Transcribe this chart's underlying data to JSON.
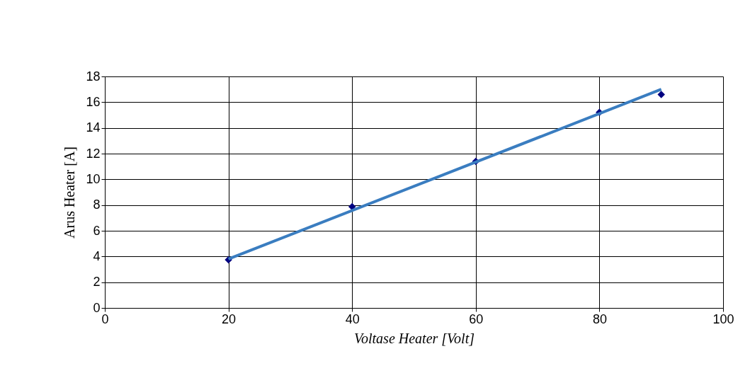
{
  "chart_data": {
    "type": "scatter",
    "xlabel": "Voltase Heater [Volt]",
    "ylabel": "Arus Heater [A]",
    "series": [
      {
        "color": "#000080",
        "marker": "diamond",
        "x": [
          20,
          40,
          60,
          80,
          90
        ],
        "values": [
          3.74,
          7.87,
          11.4,
          15.2,
          16.6
        ]
      },
      {
        "type": "line",
        "color": "#3a7dc0",
        "marker": "none",
        "line_style": "solid",
        "x": [
          20,
          90
        ],
        "values": [
          3.8,
          17.0
        ]
      }
    ],
    "xlim": [
      0,
      100
    ],
    "xticks": [
      0,
      20,
      40,
      60,
      80,
      100
    ],
    "ylim": [
      0,
      18
    ],
    "yticks": [
      0,
      2,
      4,
      6,
      8,
      10,
      12,
      14,
      16,
      18
    ],
    "grid": true
  }
}
